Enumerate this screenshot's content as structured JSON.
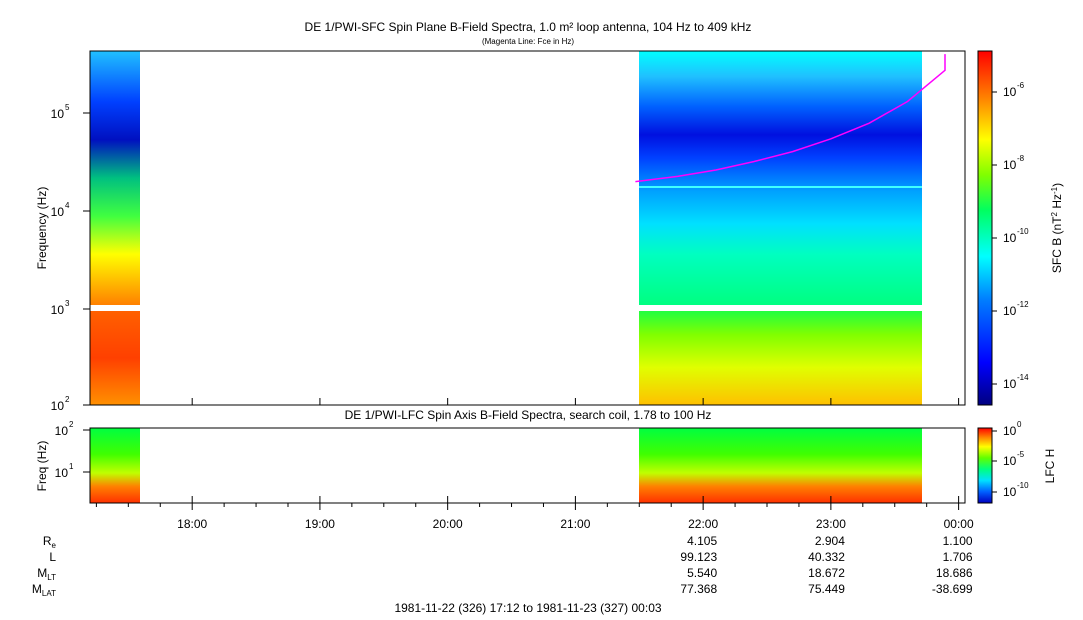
{
  "chart_data": [
    {
      "type": "heatmap",
      "title": "DE 1/PWI-SFC  Spin Plane B-Field Spectra, 1.0 m² loop antenna, 104 Hz to 409 kHz",
      "subtitle": "(Magenta Line: Fce in Hz)",
      "ylabel": "Frequency (Hz)",
      "yscale": "log",
      "ylim": [
        100,
        409000
      ],
      "y_ticks": [
        {
          "base": "10",
          "exp": "2"
        },
        {
          "base": "10",
          "exp": "3"
        },
        {
          "base": "10",
          "exp": "4"
        },
        {
          "base": "10",
          "exp": "5"
        }
      ],
      "data_segments_hours": [
        [
          17.2,
          17.57
        ],
        [
          21.47,
          23.65
        ]
      ],
      "fce_curve": {
        "name": "Fce",
        "color": "#ff00ff",
        "x_hours": [
          21.47,
          21.8,
          22.1,
          22.4,
          22.7,
          23.0,
          23.3,
          23.6,
          23.9,
          24.0
        ],
        "y_hz": [
          19000,
          21500,
          25000,
          30500,
          38500,
          52000,
          75000,
          125000,
          260000,
          380000
        ]
      },
      "colorbar": {
        "label_prefix": "SFC B (nT",
        "label_sup1": "2",
        "label_mid": " Hz",
        "label_sup2": "-1",
        "label_suffix": ")",
        "scale": "log",
        "range": [
          3e-15,
          1e-05
        ],
        "ticks": [
          {
            "base": "10",
            "exp": "-6"
          },
          {
            "base": "10",
            "exp": "-8"
          },
          {
            "base": "10",
            "exp": "-10"
          },
          {
            "base": "10",
            "exp": "-12"
          },
          {
            "base": "10",
            "exp": "-14"
          }
        ]
      }
    },
    {
      "type": "heatmap",
      "title": "DE 1/PWI-LFC  Spin Axis B-Field Spectra, search coil, 1.78 to 100 Hz",
      "ylabel": "Freq (Hz)",
      "yscale": "log",
      "ylim": [
        1.78,
        100
      ],
      "y_ticks": [
        {
          "base": "10",
          "exp": "1"
        },
        {
          "base": "10",
          "exp": "2"
        }
      ],
      "data_segments_hours": [
        [
          17.2,
          17.57
        ],
        [
          21.47,
          23.65
        ]
      ],
      "colorbar": {
        "label": "LFC H",
        "scale": "log",
        "range": [
          1e-11,
          1
        ],
        "ticks": [
          {
            "base": "10",
            "exp": "0"
          },
          {
            "base": "10",
            "exp": "-5"
          },
          {
            "base": "10",
            "exp": "-10"
          }
        ]
      }
    }
  ],
  "x_axis": {
    "range_hours": [
      17.2,
      24.05
    ],
    "tick_labels": [
      "18:00",
      "19:00",
      "20:00",
      "21:00",
      "22:00",
      "23:00",
      "00:00"
    ],
    "tick_hours": [
      18,
      19,
      20,
      21,
      22,
      23,
      24
    ]
  },
  "ephemeris": {
    "rows": [
      {
        "label": "R",
        "sub": "e",
        "values": [
          "4.105",
          "2.904",
          "1.100"
        ]
      },
      {
        "label": "L",
        "sub": "",
        "values": [
          "99.123",
          "40.332",
          "1.706"
        ]
      },
      {
        "label": "M",
        "sub": "LT",
        "values": [
          "5.540",
          "18.672",
          "18.686"
        ]
      },
      {
        "label": "M",
        "sub": "LAT",
        "values": [
          "77.368",
          "75.449",
          "-38.699"
        ]
      }
    ],
    "value_hours": [
      22,
      23,
      24
    ]
  },
  "time_span_label": "1981-11-22 (326) 17:12 to 1981-11-23 (327) 00:03"
}
